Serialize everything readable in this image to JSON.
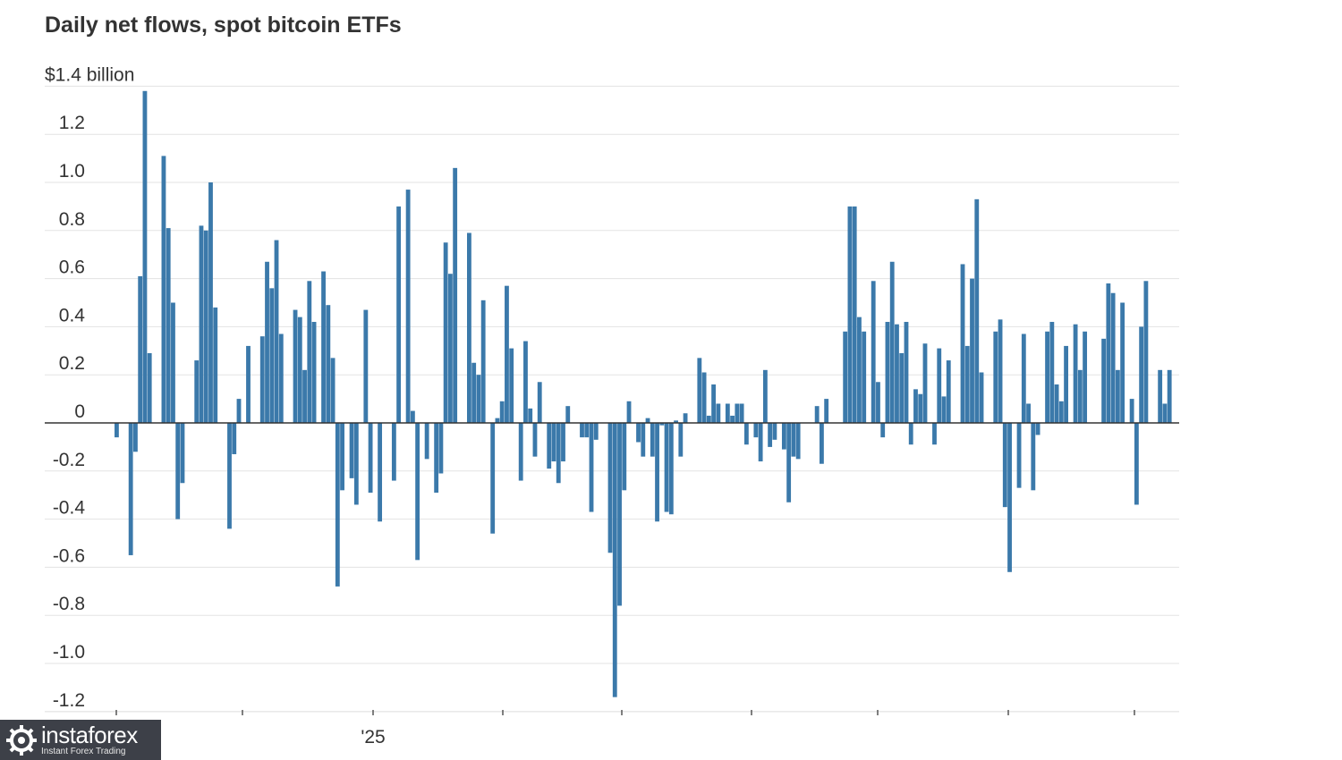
{
  "chart_data": {
    "type": "bar",
    "title": "Daily net flows, spot bitcoin ETFs",
    "ylabel": "$1.4 billion",
    "ylim": [
      -1.25,
      1.4
    ],
    "y_ticks": [
      1.2,
      1.0,
      0.8,
      0.6,
      0.4,
      0.2,
      0,
      -0.2,
      -0.4,
      -0.6,
      -0.8,
      -1.0,
      -1.2
    ],
    "y_tick_labels": [
      "1.2",
      "1.0",
      "0.8",
      "0.6",
      "0.4",
      "0.2",
      "0",
      "-0.2",
      "-0.4",
      "-0.6",
      "-0.8",
      "-1.0",
      "-1.2"
    ],
    "x_tick_labels": [
      "'25"
    ],
    "grid": true,
    "color": "#3b79aa",
    "values": [
      -0.06,
      0,
      0,
      -0.55,
      -0.12,
      0.61,
      1.38,
      0.29,
      0,
      0,
      1.11,
      0.81,
      0.5,
      -0.4,
      -0.25,
      0,
      0,
      0.26,
      0.82,
      0.8,
      1.0,
      0.48,
      0,
      0,
      -0.44,
      -0.13,
      0.1,
      0,
      0.32,
      0,
      0,
      0.36,
      0.67,
      0.56,
      0.76,
      0.37,
      0,
      0,
      0.47,
      0.44,
      0.22,
      0.59,
      0.42,
      0,
      0.63,
      0.49,
      0.27,
      -0.68,
      -0.28,
      0,
      -0.23,
      -0.34,
      0,
      0.47,
      -0.29,
      0,
      -0.41,
      0,
      0,
      -0.24,
      0.9,
      0,
      0.97,
      0.05,
      -0.57,
      0,
      -0.15,
      0,
      -0.29,
      -0.21,
      0.75,
      0.62,
      1.06,
      0,
      0,
      0.79,
      0.25,
      0.2,
      0.51,
      0,
      -0.46,
      0.02,
      0.09,
      0.57,
      0.31,
      0,
      -0.24,
      0.34,
      0.06,
      -0.14,
      0.17,
      0,
      -0.19,
      -0.16,
      -0.25,
      -0.16,
      0.07,
      0,
      0,
      -0.06,
      -0.06,
      -0.37,
      -0.07,
      0,
      0,
      -0.54,
      -1.14,
      -0.76,
      -0.28,
      0.09,
      0,
      -0.08,
      -0.14,
      0.02,
      -0.14,
      -0.41,
      -0.01,
      -0.37,
      -0.38,
      0.01,
      -0.14,
      0.04,
      0,
      0,
      0.27,
      0.21,
      0.03,
      0.16,
      0.08,
      0,
      0.08,
      0.03,
      0.08,
      0.08,
      -0.09,
      0,
      -0.06,
      -0.16,
      0.22,
      -0.1,
      -0.07,
      0,
      -0.11,
      -0.33,
      -0.14,
      -0.15,
      0,
      0,
      0,
      0.07,
      -0.17,
      0.1,
      0,
      0,
      0,
      0.38,
      0.9,
      0.9,
      0.44,
      0.38,
      0,
      0.59,
      0.17,
      -0.06,
      0.42,
      0.67,
      0.41,
      0.29,
      0.42,
      -0.09,
      0.14,
      0.12,
      0.33,
      0,
      -0.09,
      0.31,
      0.11,
      0.26,
      0,
      0,
      0.66,
      0.32,
      0.6,
      0.93,
      0.21,
      0,
      0,
      0.38,
      0.43,
      -0.35,
      -0.62,
      0,
      -0.27,
      0.37,
      0.08,
      -0.28,
      -0.05,
      0,
      0.38,
      0.42,
      0.16,
      0.09,
      0.32,
      0,
      0.41,
      0.22,
      0.38,
      0,
      0,
      0,
      0.35,
      0.58,
      0.54,
      0.22,
      0.5,
      0,
      0.1,
      -0.34,
      0.4,
      0.59,
      0,
      0,
      0.22,
      0.08,
      0.22
    ]
  },
  "watermark": {
    "brand": "instaforex",
    "tagline": "Instant Forex Trading"
  }
}
